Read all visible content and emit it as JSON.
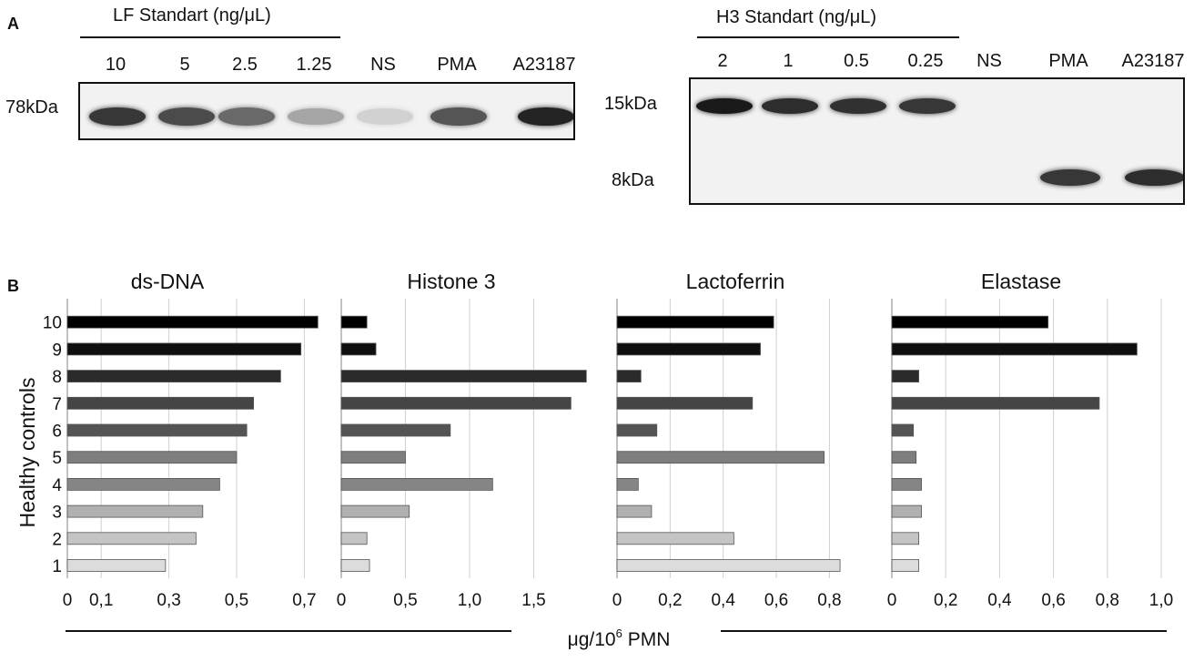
{
  "panel_a": {
    "letter": "A",
    "lf": {
      "title": "LF Standart (ng/μL)",
      "lanes": [
        "10",
        "5",
        "2.5",
        "1.25",
        "NS",
        "PMA",
        "A23187"
      ],
      "mw": "78kDa",
      "band_intensity": [
        0.85,
        0.75,
        0.6,
        0.3,
        0.08,
        0.7,
        0.95
      ]
    },
    "h3": {
      "title": "H3 Standart (ng/μL)",
      "lanes": [
        "2",
        "1",
        "0.5",
        "0.25",
        "NS",
        "PMA",
        "A23187"
      ],
      "mw_top": "15kDa",
      "mw_bottom": "8kDa",
      "band_intensity_15kDa": [
        1.0,
        0.9,
        0.88,
        0.85,
        0,
        0,
        0
      ],
      "band_intensity_8kDa": [
        0,
        0,
        0,
        0,
        0,
        0.85,
        0.9
      ]
    }
  },
  "panel_b": {
    "letter": "B"
  },
  "chart_data": [
    {
      "type": "bar",
      "orientation": "horizontal",
      "title": "ds-DNA",
      "categories": [
        "1",
        "2",
        "3",
        "4",
        "5",
        "6",
        "7",
        "8",
        "9",
        "10"
      ],
      "values": [
        0.29,
        0.38,
        0.4,
        0.45,
        0.5,
        0.53,
        0.55,
        0.63,
        0.69,
        0.74
      ],
      "xlim": [
        0,
        0.75
      ],
      "xticks": [
        "0",
        "0,1",
        "0,3",
        "0,5",
        "0,7"
      ],
      "xtick_values": [
        0,
        0.1,
        0.3,
        0.5,
        0.7
      ]
    },
    {
      "type": "bar",
      "orientation": "horizontal",
      "title": "Histone 3",
      "categories": [
        "1",
        "2",
        "3",
        "4",
        "5",
        "6",
        "7",
        "8",
        "9",
        "10"
      ],
      "values": [
        0.22,
        0.2,
        0.53,
        1.18,
        0.5,
        0.85,
        1.79,
        1.91,
        0.27,
        0.2
      ],
      "xlim": [
        0,
        2.05
      ],
      "xticks": [
        "0",
        "0,5",
        "1,0",
        "1,5"
      ],
      "xtick_values": [
        0,
        0.5,
        1.0,
        1.5
      ]
    },
    {
      "type": "bar",
      "orientation": "horizontal",
      "title": "Lactoferrin",
      "categories": [
        "1",
        "2",
        "3",
        "4",
        "5",
        "6",
        "7",
        "8",
        "9",
        "10"
      ],
      "values": [
        0.84,
        0.44,
        0.13,
        0.08,
        0.78,
        0.15,
        0.51,
        0.09,
        0.54,
        0.59
      ],
      "xlim": [
        0,
        0.97
      ],
      "xticks": [
        "0",
        "0,2",
        "0,4",
        "0,6",
        "0,8"
      ],
      "xtick_values": [
        0,
        0.2,
        0.4,
        0.6,
        0.8
      ]
    },
    {
      "type": "bar",
      "orientation": "horizontal",
      "title": "Elastase",
      "categories": [
        "1",
        "2",
        "3",
        "4",
        "5",
        "6",
        "7",
        "8",
        "9",
        "10"
      ],
      "values": [
        0.1,
        0.1,
        0.11,
        0.11,
        0.09,
        0.08,
        0.77,
        0.1,
        0.91,
        0.58
      ],
      "xlim": [
        0,
        1.0
      ],
      "xticks": [
        "0",
        "0,2",
        "0,4",
        "0,6",
        "0,8",
        "1,0"
      ],
      "xtick_values": [
        0,
        0.2,
        0.4,
        0.6,
        0.8,
        1.0
      ]
    }
  ],
  "axes": {
    "ylabel": "Healthy controls",
    "xlabel_prefix": "μg/10",
    "xlabel_sup": "6",
    "xlabel_suffix": " PMN"
  },
  "colors": {
    "bar_ramp": [
      "#dcdcdc",
      "#c4c4c4",
      "#b0b0b0",
      "#858585",
      "#7e7e7e",
      "#545454",
      "#454545",
      "#2b2b2b",
      "#0f0f0f",
      "#000000"
    ],
    "grid": "#cfcfcf",
    "axis": "#999999"
  }
}
